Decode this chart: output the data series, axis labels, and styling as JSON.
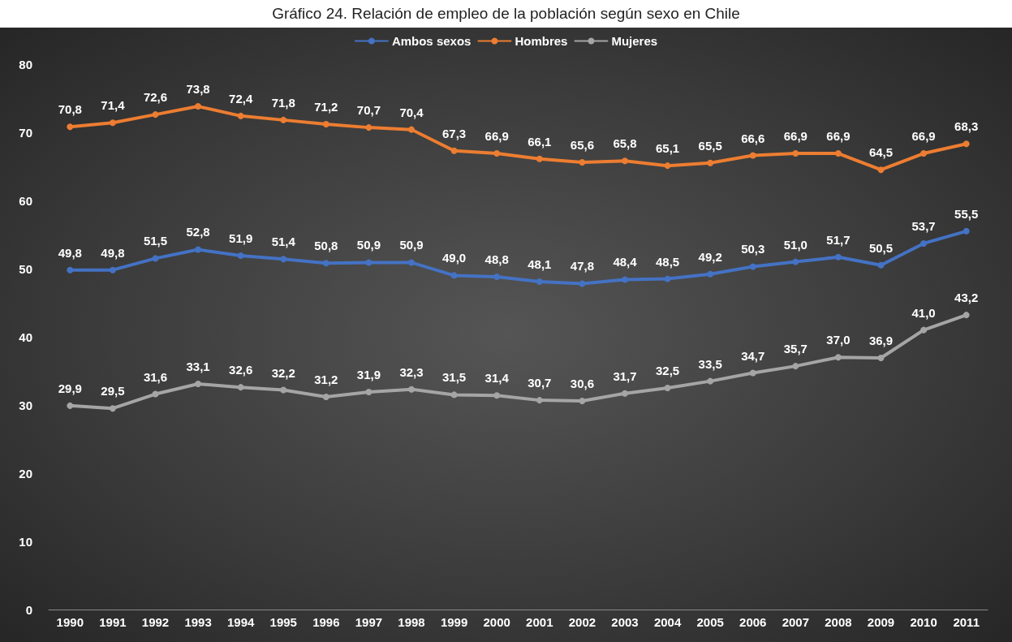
{
  "chart_data": {
    "type": "line",
    "title": "Gráfico 24. Relación de empleo de la población según sexo en Chile",
    "categories": [
      "1990",
      "1991",
      "1992",
      "1993",
      "1994",
      "1995",
      "1996",
      "1997",
      "1998",
      "1999",
      "2000",
      "2001",
      "2002",
      "2003",
      "2004",
      "2005",
      "2006",
      "2007",
      "2008",
      "2009",
      "2010",
      "2011"
    ],
    "series": [
      {
        "name": "Ambos sexos",
        "color": "#4472c4",
        "values": [
          49.8,
          49.8,
          51.5,
          52.8,
          51.9,
          51.4,
          50.8,
          50.9,
          50.9,
          49.0,
          48.8,
          48.1,
          47.8,
          48.4,
          48.5,
          49.2,
          50.3,
          51.0,
          51.7,
          50.5,
          53.7,
          55.5
        ],
        "value_labels": [
          "49,8",
          "49,8",
          "51,5",
          "52,8",
          "51,9",
          "51,4",
          "50,8",
          "50,9",
          "50,9",
          "49,0",
          "48,8",
          "48,1",
          "47,8",
          "48,4",
          "48,5",
          "49,2",
          "50,3",
          "51,0",
          "51,7",
          "50,5",
          "53,7",
          "55,5"
        ]
      },
      {
        "name": "Hombres",
        "color": "#ed7d31",
        "values": [
          70.8,
          71.4,
          72.6,
          73.8,
          72.4,
          71.8,
          71.2,
          70.7,
          70.4,
          67.3,
          66.9,
          66.1,
          65.6,
          65.8,
          65.1,
          65.5,
          66.6,
          66.9,
          66.9,
          64.5,
          66.9,
          68.3
        ],
        "value_labels": [
          "70,8",
          "71,4",
          "72,6",
          "73,8",
          "72,4",
          "71,8",
          "71,2",
          "70,7",
          "70,4",
          "67,3",
          "66,9",
          "66,1",
          "65,6",
          "65,8",
          "65,1",
          "65,5",
          "66,6",
          "66,9",
          "66,9",
          "64,5",
          "66,9",
          "68,3"
        ]
      },
      {
        "name": "Mujeres",
        "color": "#a5a5a5",
        "values": [
          29.9,
          29.5,
          31.6,
          33.1,
          32.6,
          32.2,
          31.2,
          31.9,
          32.3,
          31.5,
          31.4,
          30.7,
          30.6,
          31.7,
          32.5,
          33.5,
          34.7,
          35.7,
          37.0,
          36.9,
          41.0,
          43.2
        ],
        "value_labels": [
          "29,9",
          "29,5",
          "31,6",
          "33,1",
          "32,6",
          "32,2",
          "31,2",
          "31,9",
          "32,3",
          "31,5",
          "31,4",
          "30,7",
          "30,6",
          "31,7",
          "32,5",
          "33,5",
          "34,7",
          "35,7",
          "37,0",
          "36,9",
          "41,0",
          "43,2"
        ]
      }
    ],
    "ylim": [
      0,
      80
    ],
    "yticks": [
      0,
      10,
      20,
      30,
      40,
      50,
      60,
      70,
      80
    ],
    "grid": false,
    "legend": "top",
    "marker": "circle",
    "line_style": "solid"
  }
}
